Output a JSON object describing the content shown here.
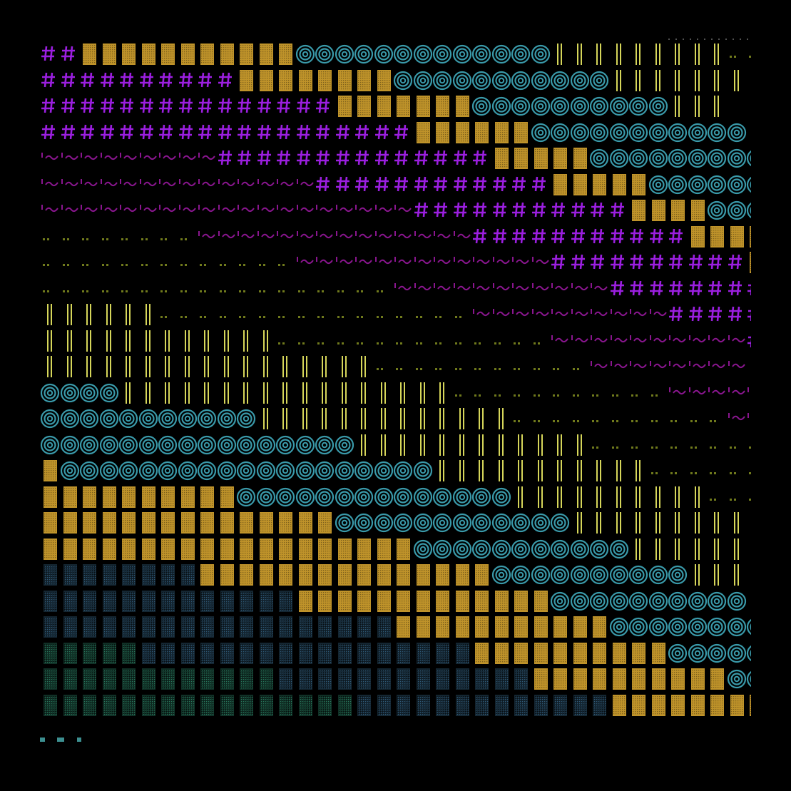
{
  "artwork": {
    "description_colors": {
      "background": "#000000",
      "purple": "#9b1fe0",
      "magenta_dim": "#8a168f",
      "gold": "#c99b2c",
      "teal_ring": "#3a9aaa",
      "yellow_bar": "#d6d65a",
      "olive_dots": "#707a1c",
      "blue_dots": "#3a6d90",
      "green_dots": "#2f8a6c",
      "cyan_small": "#3c8f90"
    },
    "bands": [
      {
        "kind": "hash",
        "color": "purple",
        "icon": "hash-glyph"
      },
      {
        "kind": "tilde",
        "color": "magenta_dim",
        "icon": "tilde-glyph"
      },
      {
        "kind": "dotpair",
        "color": "olive_dots",
        "icon": "dots-glyph"
      },
      {
        "kind": "bar",
        "color": "yellow_bar",
        "icon": "double-bar-glyph"
      },
      {
        "kind": "ring",
        "color": "teal_ring",
        "icon": "concentric-ring-glyph"
      },
      {
        "kind": "block",
        "color": "gold",
        "icon": "dotted-block-glyph"
      },
      {
        "kind": "blueblock",
        "color": "blue_dots",
        "icon": "blue-dotted-block-glyph"
      },
      {
        "kind": "greenblock",
        "color": "green_dots",
        "icon": "green-dotted-block-glyph"
      }
    ]
  }
}
